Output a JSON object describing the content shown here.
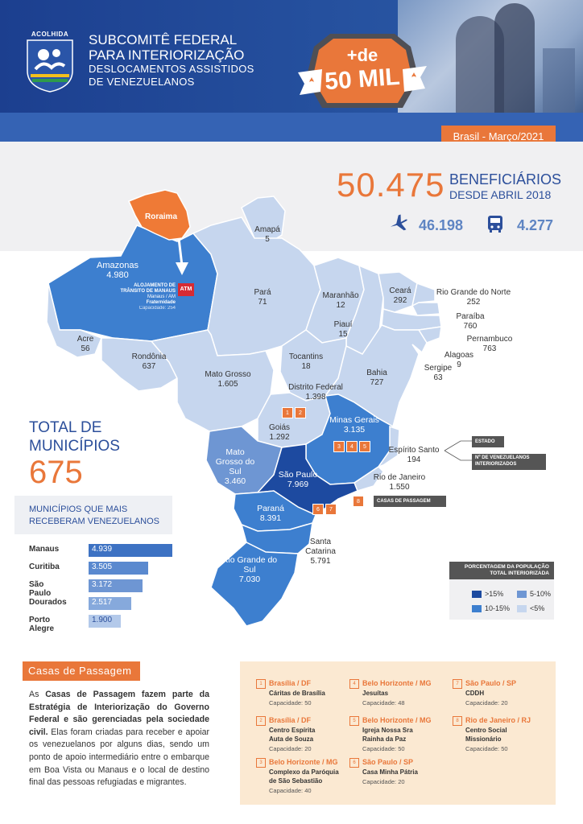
{
  "header": {
    "logo_text": "ACOLHIDA",
    "title_line1": "SUBCOMITÊ FEDERAL",
    "title_line2": "PARA INTERIORIZAÇÃO",
    "subtitle_line1": "DESLOCAMENTOS ASSISTIDOS",
    "subtitle_line2": "DE VENEZUELANOS",
    "badge_top": "+de",
    "badge_main": "50 MIL",
    "date": "Brasil - Março/2021"
  },
  "summary": {
    "total": "50.475",
    "label_line1": "BENEFICIÁRIOS",
    "label_line2": "DESDE ABRIL 2018",
    "plane_icon": "airplane-icon",
    "plane_value": "46.198",
    "bus_icon": "bus-icon",
    "bus_value": "4.277"
  },
  "map": {
    "states": [
      {
        "name": "Roraima",
        "value": ""
      },
      {
        "name": "Amapá",
        "value": "5"
      },
      {
        "name": "Amazonas",
        "value": "4.980"
      },
      {
        "name": "Pará",
        "value": "71"
      },
      {
        "name": "Maranhão",
        "value": "12"
      },
      {
        "name": "Ceará",
        "value": "292"
      },
      {
        "name": "Rio Grande do Norte",
        "value": "252"
      },
      {
        "name": "Paraíba",
        "value": "760"
      },
      {
        "name": "Pernambuco",
        "value": "763"
      },
      {
        "name": "Alagoas",
        "value": "9"
      },
      {
        "name": "Sergipe",
        "value": "63"
      },
      {
        "name": "Piauí",
        "value": "15"
      },
      {
        "name": "Acre",
        "value": "56"
      },
      {
        "name": "Rondônia",
        "value": "637"
      },
      {
        "name": "Tocantins",
        "value": "18"
      },
      {
        "name": "Bahia",
        "value": "727"
      },
      {
        "name": "Mato Grosso",
        "value": "1.605"
      },
      {
        "name": "Distrito Federal",
        "value": "1.398"
      },
      {
        "name": "Goiás",
        "value": "1.292"
      },
      {
        "name": "Minas Gerais",
        "value": "3.135"
      },
      {
        "name": "Espírito Santo",
        "value": "194"
      },
      {
        "name": "Mato Grosso do Sul",
        "value": "3.460"
      },
      {
        "name": "São Paulo",
        "value": "7.969"
      },
      {
        "name": "Rio de Janeiro",
        "value": "1.550"
      },
      {
        "name": "Paraná",
        "value": "8.391"
      },
      {
        "name": "Santa Catarina",
        "value": "5.791"
      },
      {
        "name": "Rio Grande do Sul",
        "value": "7.030"
      }
    ],
    "alojamento": {
      "line1": "ALOJAMENTO DE",
      "line2": "TRÂNSITO DE MANAUS",
      "line3": "Manaus / AM",
      "line4": "Fraternidade",
      "line5": "Capacidade: 254",
      "atm": "ATM"
    },
    "legend_estado": "ESTADO",
    "legend_num_line1": "Nº DE VENEZUELANOS",
    "legend_num_line2": "INTERIORIZADOS",
    "legend_casas": "CASAS DE PASSAGEM",
    "houses": [
      "1",
      "2",
      "3",
      "4",
      "5",
      "6",
      "7",
      "8"
    ]
  },
  "municipios": {
    "title_line1": "TOTAL DE",
    "title_line2": "MUNICÍPIOS",
    "total": "675",
    "box_line1": "MUNICÍPIOS QUE MAIS",
    "box_line2": "RECEBERAM VENEZUELANOS",
    "top": [
      {
        "name": "Manaus",
        "value": 4939,
        "label": "4.939"
      },
      {
        "name": "Curitiba",
        "value": 3505,
        "label": "3.505"
      },
      {
        "name": "São Paulo",
        "value": 3172,
        "label": "3.172"
      },
      {
        "name": "Dourados",
        "value": 2517,
        "label": "2.517"
      },
      {
        "name": "Porto Alegre",
        "value": 1900,
        "label": "1.900"
      }
    ]
  },
  "population_legend": {
    "title_line1": "PORCENTAGEM DA POPULAÇÃO",
    "title_line2": "TOTAL INTERIORIZADA",
    "items": [
      {
        "label": ">15%",
        "color": "#1d4aa0"
      },
      {
        "label": "5-10%",
        "color": "#6e96d3"
      },
      {
        "label": "10-15%",
        "color": "#3d7fcf"
      },
      {
        "label": "<5%",
        "color": "#c6d6ee"
      }
    ]
  },
  "casas": {
    "title": "Casas de Passagem",
    "text_pre": "As ",
    "text_bold": "Casas de Passagem fazem parte da Estratégia de Interiorização do Governo Federal e são gerenciadas pela sociedade civil.",
    "text_rest": " Elas foram criadas para receber e apoiar os venezuelanos por alguns dias, sendo um ponto de apoio intermediário entre o embarque em Boa Vista ou Manaus e o local de destino final das pessoas refugiadas e migrantes.",
    "list": [
      {
        "n": "1",
        "city": "Brasília / DF",
        "name": [
          "Cáritas de Brasília"
        ],
        "cap": "Capacidade: 50"
      },
      {
        "n": "2",
        "city": "Brasília / DF",
        "name": [
          "Centro Espírita",
          "Auta de Souza"
        ],
        "cap": "Capacidade: 20"
      },
      {
        "n": "3",
        "city": "Belo Horizonte / MG",
        "name": [
          "Complexo da Paróquia",
          "de São Sebastião"
        ],
        "cap": "Capacidade: 40"
      },
      {
        "n": "4",
        "city": "Belo Horizonte / MG",
        "name": [
          "Jesuítas"
        ],
        "cap": "Capacidade: 48"
      },
      {
        "n": "5",
        "city": "Belo Horizonte / MG",
        "name": [
          "Igreja Nossa Sra",
          "Rainha da Paz"
        ],
        "cap": "Capacidade: 50"
      },
      {
        "n": "6",
        "city": "São Paulo / SP",
        "name": [
          "Casa Minha Pátria"
        ],
        "cap": "Capacidade: 20"
      },
      {
        "n": "7",
        "city": "São Paulo / SP",
        "name": [
          "CDDH"
        ],
        "cap": "Capacidade: 20"
      },
      {
        "n": "8",
        "city": "Rio de Janeiro / RJ",
        "name": [
          "Centro Social",
          "Missionário"
        ],
        "cap": "Capacidade: 50"
      }
    ]
  }
}
